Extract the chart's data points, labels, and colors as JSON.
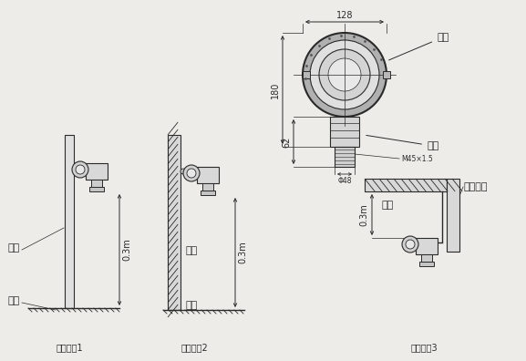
{
  "bg_color": "#eeece8",
  "line_color": "#2a2a2a",
  "annotations": {
    "shell_label": "壳体",
    "chamber_label": "气室",
    "pillar_label": "立柱",
    "ground1_label": "地面",
    "wall_label": "墙面",
    "ground2_label": "地面",
    "top_label": "顶面",
    "bracket_label": "安装支架",
    "install1": "安装方式1",
    "install2": "安装方式2",
    "install3": "安装方式3",
    "dim_128": "128",
    "dim_180": "180",
    "dim_62": "62",
    "dim_m45": "M45×1.5",
    "dim_phi48": "Φ48",
    "dim_03_1": "0.3m",
    "dim_03_2": "0.3m",
    "dim_03_3": "0.3m"
  }
}
